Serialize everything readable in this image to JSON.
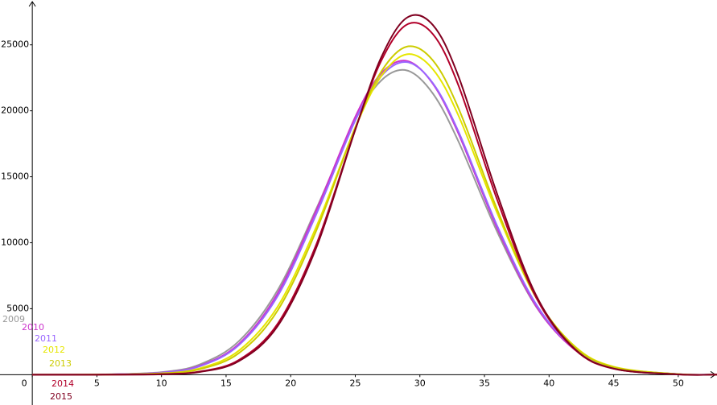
{
  "chart_data": {
    "type": "line",
    "x": [
      0,
      5,
      10,
      13,
      16,
      19,
      22,
      25,
      27,
      29,
      31,
      33,
      36,
      39,
      42,
      45,
      50,
      53
    ],
    "series": [
      {
        "name": "2009",
        "color": "#999999",
        "values": [
          0,
          10,
          190,
          790,
          2550,
          6420,
          12610,
          19290,
          22290,
          23060,
          21320,
          17650,
          10800,
          5150,
          1910,
          550,
          40,
          6
        ]
      },
      {
        "name": "2010",
        "color": "#cc33cc",
        "values": [
          0,
          7,
          160,
          690,
          2340,
          6170,
          12490,
          19540,
          22830,
          23780,
          22060,
          18250,
          11070,
          5190,
          1880,
          520,
          35,
          5
        ]
      },
      {
        "name": "2011",
        "color": "#9966ff",
        "values": [
          0,
          7,
          150,
          650,
          2250,
          5970,
          12200,
          19270,
          22620,
          23690,
          22110,
          18400,
          11250,
          5340,
          1940,
          550,
          40,
          6
        ]
      },
      {
        "name": "2012",
        "color": "#e6e600",
        "values": [
          0,
          4,
          100,
          490,
          1830,
          5170,
          11250,
          18710,
          22620,
          24290,
          23160,
          19610,
          12220,
          5830,
          2140,
          600,
          40,
          6
        ]
      },
      {
        "name": "2013",
        "color": "#cccc00",
        "values": [
          0,
          3,
          80,
          420,
          1640,
          4880,
          10960,
          18750,
          22960,
          24870,
          23830,
          20170,
          12480,
          5850,
          2090,
          560,
          35,
          5
        ]
      },
      {
        "name": "2014",
        "color": "#b2002a",
        "values": [
          0,
          0,
          40,
          240,
          1120,
          3870,
          9910,
          18580,
          23770,
          26540,
          25820,
          21890,
          13220,
          5850,
          1900,
          450,
          20,
          2
        ]
      },
      {
        "name": "2015",
        "color": "#800020",
        "values": [
          0,
          0,
          30,
          210,
          1030,
          3690,
          9670,
          18560,
          24030,
          27060,
          26510,
          22580,
          13650,
          6010,
          1940,
          460,
          20,
          2
        ]
      }
    ],
    "xlim": [
      -2.5,
      53
    ],
    "ylim": [
      -2300,
      28400
    ],
    "xticks": [
      0,
      5,
      10,
      15,
      20,
      25,
      30,
      35,
      40,
      45,
      50
    ],
    "yticks": [
      5000,
      10000,
      15000,
      20000,
      25000
    ]
  }
}
